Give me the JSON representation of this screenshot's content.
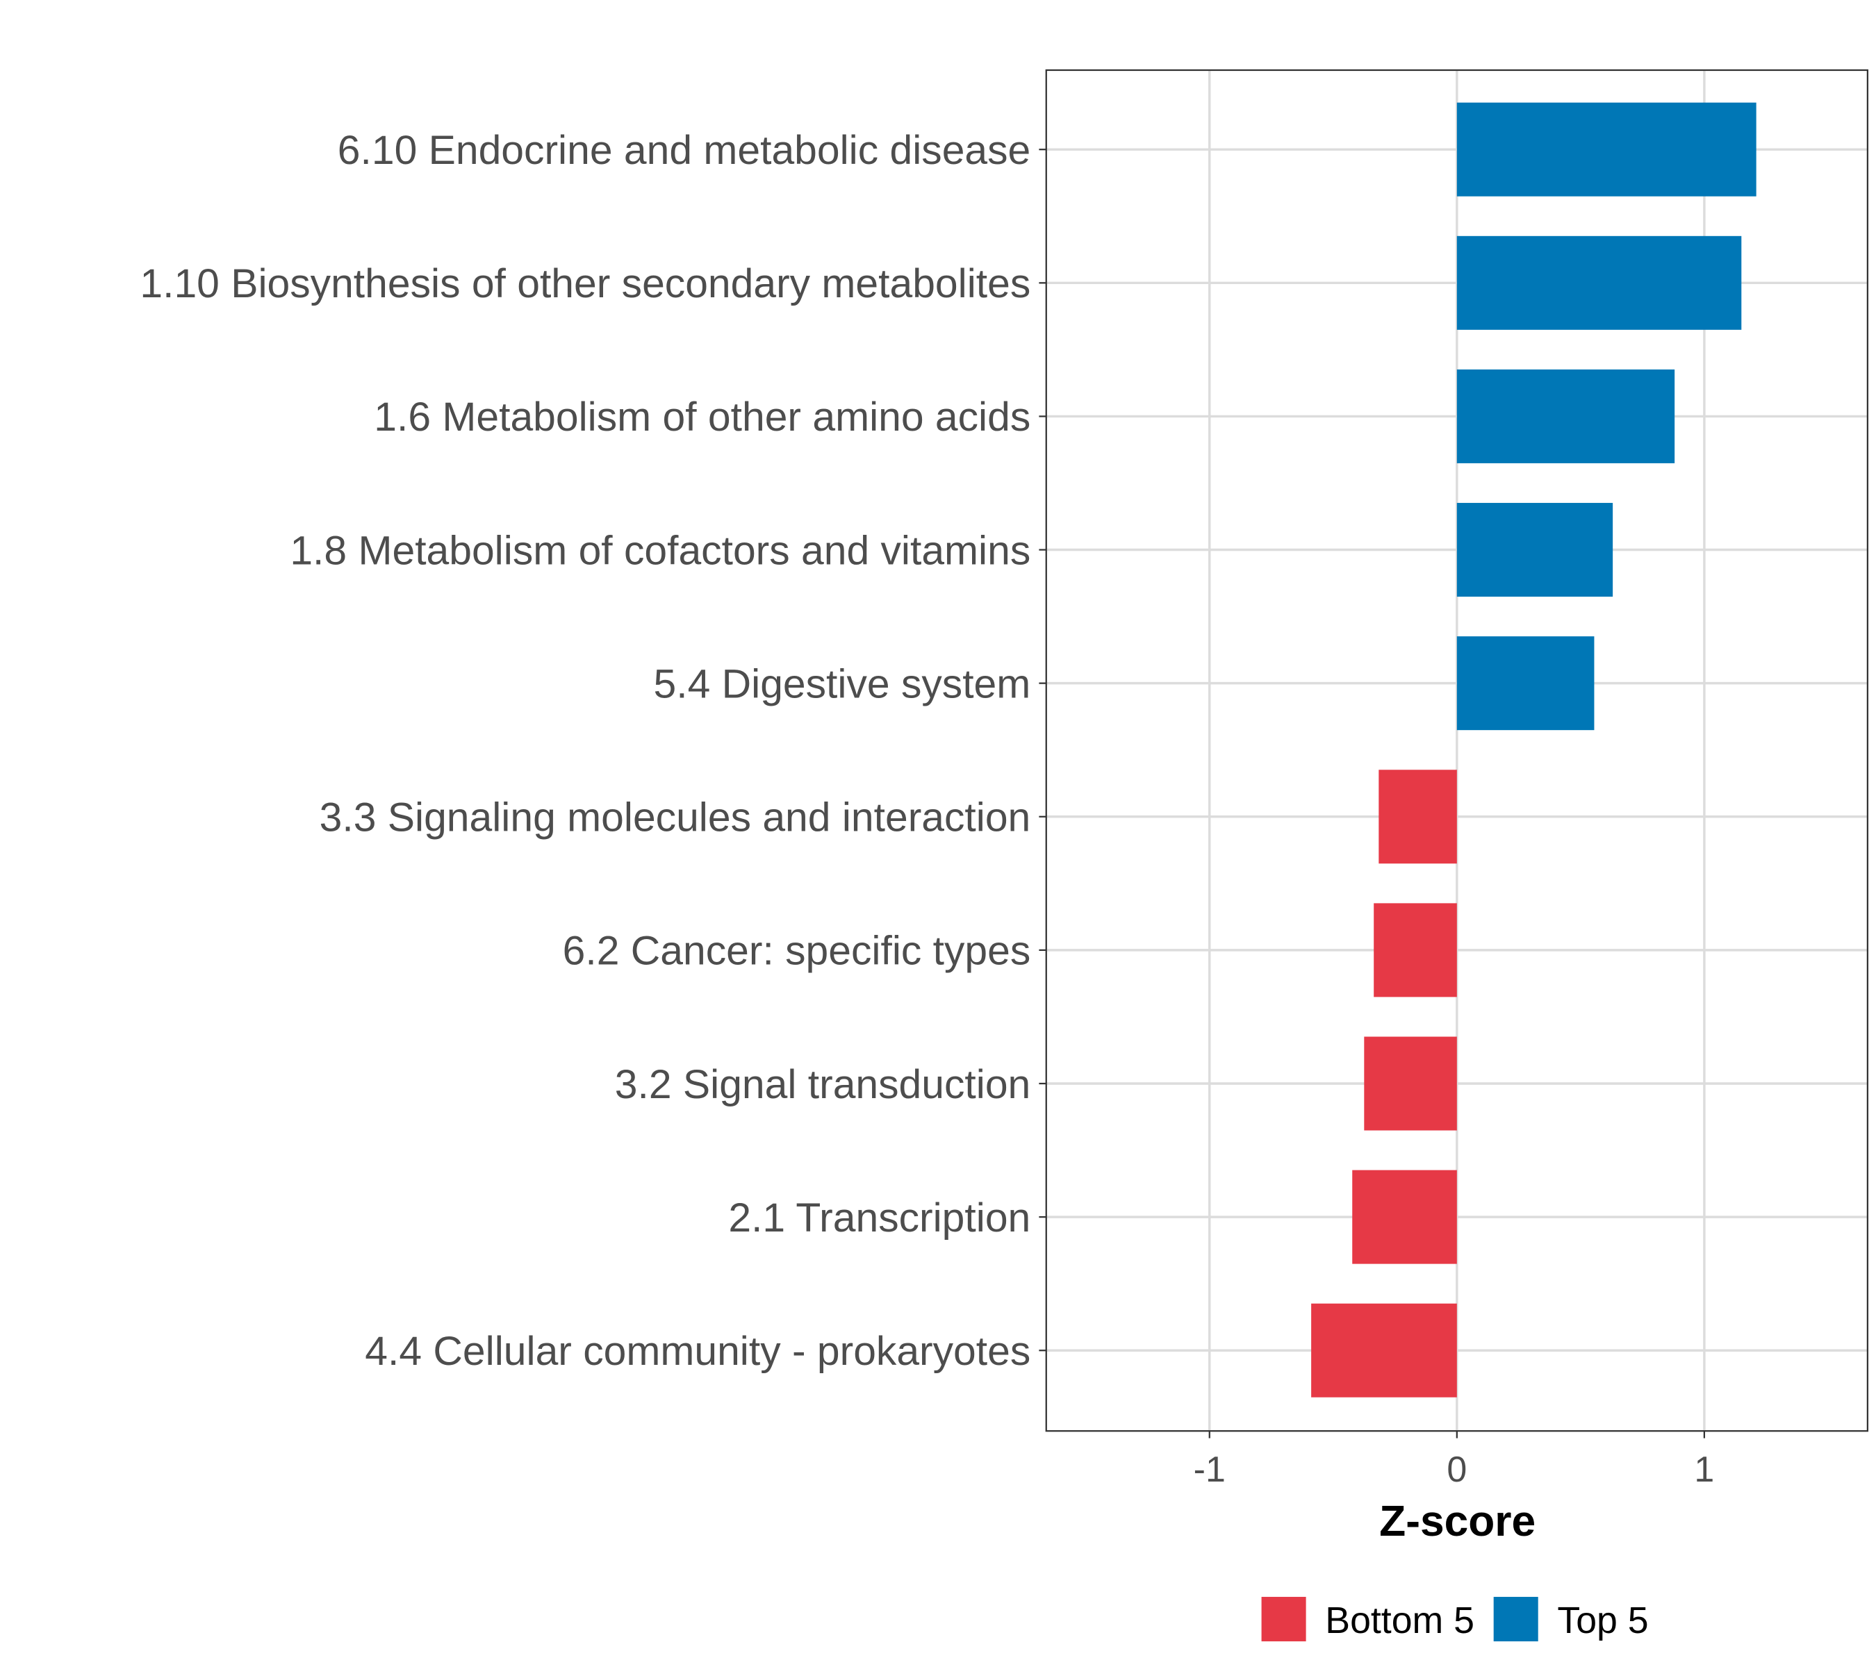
{
  "chart_data": {
    "type": "bar",
    "orientation": "horizontal",
    "title": "",
    "xlabel": "Z-score",
    "ylabel": "",
    "xlim": [
      -1.66,
      1.66
    ],
    "xticks": [
      -1,
      0,
      1
    ],
    "xtick_labels": [
      "-1",
      "0",
      "1"
    ],
    "grid": true,
    "legend_position": "bottom",
    "legend": [
      {
        "name": "Bottom 5",
        "color": "#e63946"
      },
      {
        "name": "Top 5",
        "color": "#0077b6"
      }
    ],
    "categories": [
      "6.10 Endocrine and metabolic disease",
      "1.10 Biosynthesis of other secondary metabolites",
      "1.6 Metabolism of other amino acids",
      "1.8 Metabolism of cofactors and vitamins",
      "5.4 Digestive system",
      "3.3 Signaling molecules and interaction",
      "6.2 Cancer: specific types",
      "3.2 Signal transduction",
      "2.1 Transcription",
      "4.4 Cellular community - prokaryotes"
    ],
    "values": [
      1.21,
      1.15,
      0.88,
      0.63,
      0.555,
      -0.316,
      -0.336,
      -0.375,
      -0.423,
      -0.589
    ],
    "groups": [
      "Top 5",
      "Top 5",
      "Top 5",
      "Top 5",
      "Top 5",
      "Bottom 5",
      "Bottom 5",
      "Bottom 5",
      "Bottom 5",
      "Bottom 5"
    ]
  }
}
